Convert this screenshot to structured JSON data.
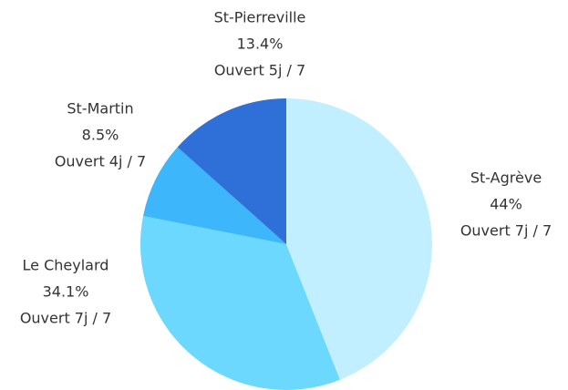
{
  "chart_data": {
    "type": "pie",
    "categories": [
      "St-Agrève",
      "Le Cheylard",
      "St-Martin",
      "St-Pierreville"
    ],
    "values": [
      44,
      34.1,
      8.5,
      13.4
    ],
    "value_labels": [
      "44%",
      "34.1%",
      "8.5%",
      "13.4%"
    ],
    "annotations": [
      "Ouvert 7j / 7",
      "Ouvert 7j / 7",
      "Ouvert 4j / 7",
      "Ouvert 5j / 7"
    ],
    "colors": [
      "#c2efff",
      "#6dd8fd",
      "#3db6fc",
      "#2f70d8"
    ]
  }
}
